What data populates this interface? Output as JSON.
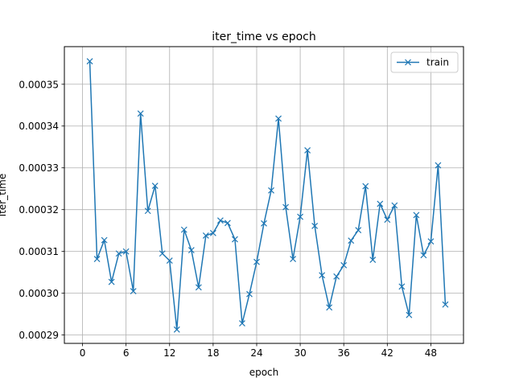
{
  "chart_data": {
    "type": "line",
    "title": "iter_time vs epoch",
    "xlabel": "epoch",
    "ylabel": "iter_time",
    "xlim": [
      -2.5,
      52.5
    ],
    "ylim": [
      0.000288,
      0.000359
    ],
    "xticks": [
      0,
      6,
      12,
      18,
      24,
      30,
      36,
      42,
      48
    ],
    "yticks": [
      0.00029,
      0.0003,
      0.00031,
      0.00032,
      0.00033,
      0.00034,
      0.00035
    ],
    "ytick_labels": [
      "0.00029",
      "0.00030",
      "0.00031",
      "0.00032",
      "0.00033",
      "0.00034",
      "0.00035"
    ],
    "grid": true,
    "legend_position": "top-right",
    "series": [
      {
        "name": "train",
        "color": "#1f77b4",
        "marker": "x",
        "x": [
          1,
          2,
          3,
          4,
          5,
          6,
          7,
          8,
          9,
          10,
          11,
          12,
          13,
          14,
          15,
          16,
          17,
          18,
          19,
          20,
          21,
          22,
          23,
          24,
          25,
          26,
          27,
          28,
          29,
          30,
          31,
          32,
          33,
          34,
          35,
          36,
          37,
          38,
          39,
          40,
          41,
          42,
          43,
          44,
          45,
          46,
          47,
          48,
          49,
          50
        ],
        "values": [
          0.0003555,
          0.0003082,
          0.0003127,
          0.0003027,
          0.0003095,
          0.00031,
          0.0003005,
          0.000343,
          0.0003197,
          0.0003257,
          0.0003095,
          0.0003078,
          0.0002913,
          0.0003152,
          0.0003103,
          0.0003014,
          0.0003138,
          0.0003144,
          0.0003174,
          0.0003168,
          0.0003129,
          0.0002928,
          0.0002998,
          0.0003075,
          0.0003167,
          0.0003246,
          0.0003418,
          0.0003206,
          0.0003082,
          0.0003183,
          0.0003342,
          0.0003161,
          0.0003043,
          0.0002966,
          0.000304,
          0.0003067,
          0.0003126,
          0.0003151,
          0.0003256,
          0.000308,
          0.0003214,
          0.0003176,
          0.000321,
          0.0003016,
          0.0002948,
          0.0003187,
          0.0003091,
          0.0003124,
          0.0003306,
          0.0002973
        ]
      }
    ]
  }
}
